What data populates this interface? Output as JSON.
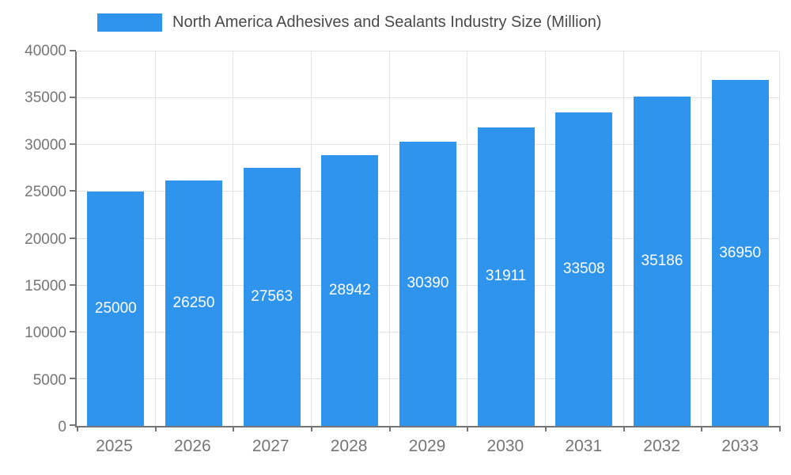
{
  "chart_data": {
    "type": "bar",
    "title": "North America Adhesives and Sealants Industry Size (Million)",
    "categories": [
      "2025",
      "2026",
      "2027",
      "2028",
      "2029",
      "2030",
      "2031",
      "2032",
      "2033"
    ],
    "values": [
      25000,
      26250,
      27563,
      28942,
      30390,
      31911,
      33508,
      35186,
      36950
    ],
    "xlabel": "",
    "ylabel": "",
    "ylim": [
      0,
      40000
    ],
    "yticks": [
      0,
      5000,
      10000,
      15000,
      20000,
      25000,
      30000,
      35000,
      40000
    ],
    "grid": true,
    "legend_position": "top",
    "colors": {
      "bar": "#2F94EB",
      "grid": "#e3e3e3",
      "axis": "#757575",
      "tick_text": "#757575",
      "title_text": "#4a4a4a",
      "value_label_text": "#ffffff",
      "background": "#ffffff"
    }
  }
}
